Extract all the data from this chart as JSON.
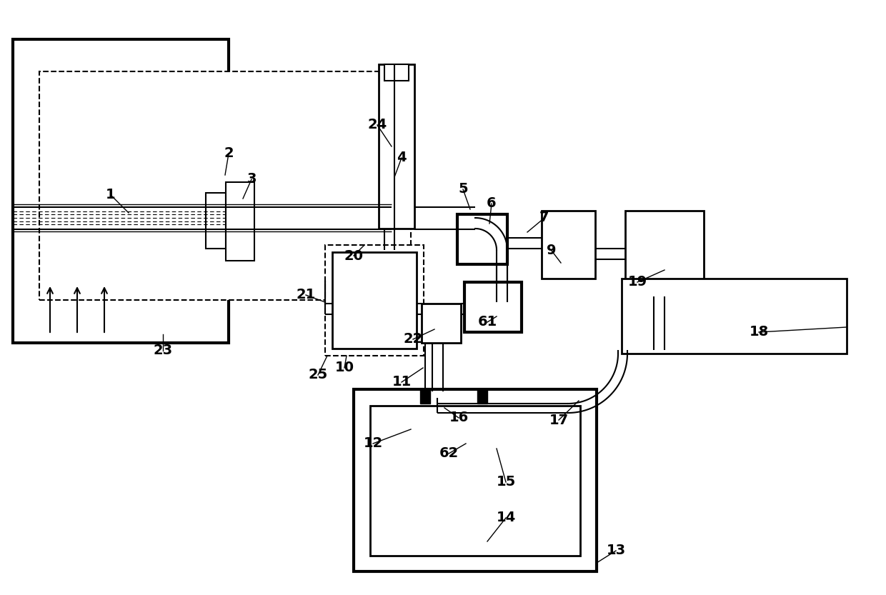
{
  "bg": "#ffffff",
  "lc": "#000000",
  "fig_w": 12.4,
  "fig_h": 8.33,
  "lw_thick": 3.0,
  "lw_med": 2.0,
  "lw_thin": 1.5,
  "lw_fine": 1.0,
  "font_size": 14,
  "font_weight": "bold"
}
